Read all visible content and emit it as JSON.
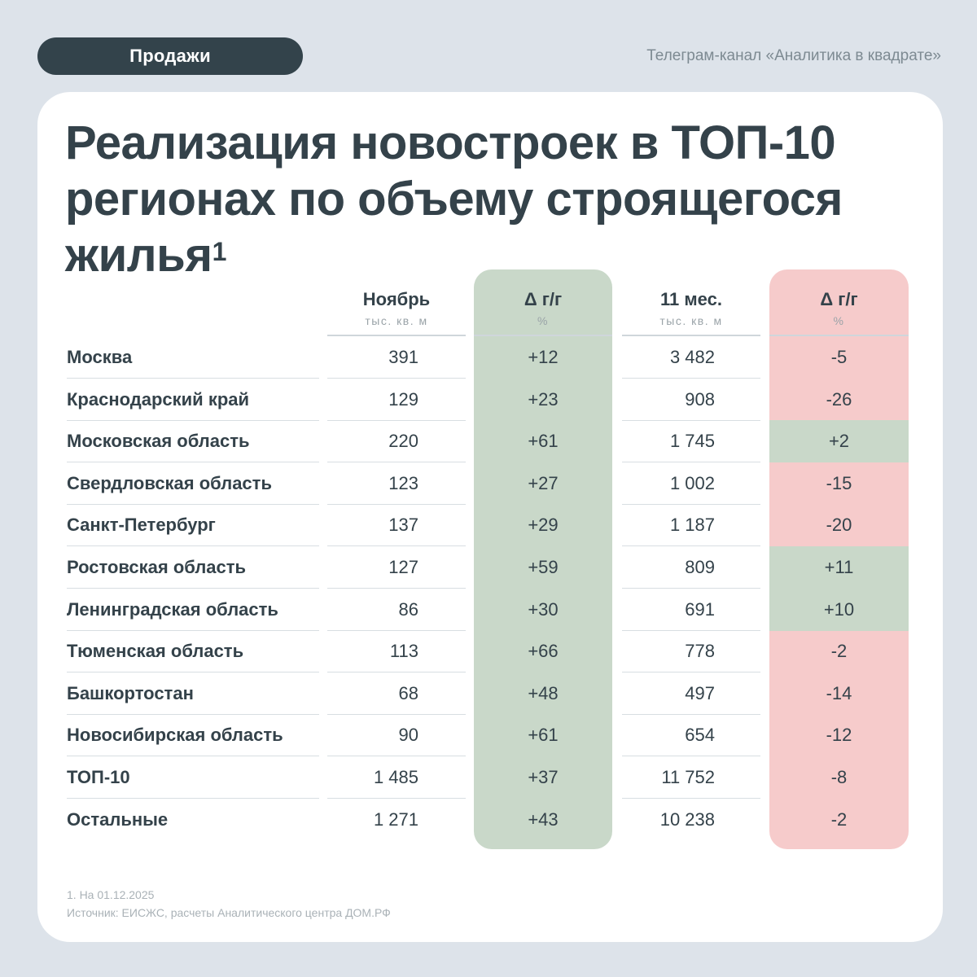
{
  "header": {
    "badge": "Продажи",
    "channel": "Телеграм-канал «Аналитика в квадрате»"
  },
  "title": {
    "text": "Реализация новостроек в ТОП-10 регионах по объему строящегося жилья",
    "footnote_mark": "1"
  },
  "columns": {
    "nov": {
      "label": "Ноябрь",
      "unit": "тыс. кв. м"
    },
    "d1": {
      "label": "Δ г/г",
      "unit": "%"
    },
    "m11": {
      "label": "11 мес.",
      "unit": "тыс. кв. м"
    },
    "d2": {
      "label": "Δ г/г",
      "unit": "%"
    }
  },
  "rows": [
    {
      "name": "Москва",
      "nov": "391",
      "d1": "+12",
      "m11": "3 482",
      "d2": "-5"
    },
    {
      "name": "Краснодарский край",
      "nov": "129",
      "d1": "+23",
      "m11": "908",
      "d2": "-26"
    },
    {
      "name": "Московская область",
      "nov": "220",
      "d1": "+61",
      "m11": "1 745",
      "d2": "+2"
    },
    {
      "name": "Свердловская область",
      "nov": "123",
      "d1": "+27",
      "m11": "1 002",
      "d2": "-15"
    },
    {
      "name": "Санкт-Петербург",
      "nov": "137",
      "d1": "+29",
      "m11": "1 187",
      "d2": "-20"
    },
    {
      "name": "Ростовская область",
      "nov": "127",
      "d1": "+59",
      "m11": "809",
      "d2": "+11"
    },
    {
      "name": "Ленинградская область",
      "nov": "86",
      "d1": "+30",
      "m11": "691",
      "d2": "+10"
    },
    {
      "name": "Тюменская область",
      "nov": "113",
      "d1": "+66",
      "m11": "778",
      "d2": "-2"
    },
    {
      "name": "Башкортостан",
      "nov": "68",
      "d1": "+48",
      "m11": "497",
      "d2": "-14"
    },
    {
      "name": "Новосибирская область",
      "nov": "90",
      "d1": "+61",
      "m11": "654",
      "d2": "-12"
    },
    {
      "name": "ТОП-10",
      "nov": "1 485",
      "d1": "+37",
      "m11": "11 752",
      "d2": "-8"
    },
    {
      "name": "Остальные",
      "nov": "1 271",
      "d1": "+43",
      "m11": "10 238",
      "d2": "-2"
    }
  ],
  "footer": {
    "note": "1. На 01.12.2025",
    "source": "Источник: ЕИСЖС, расчеты Аналитического центра ДОМ.РФ"
  },
  "colors": {
    "positive_band": "#c9d8c9",
    "negative_band": "#f6cbcb",
    "dark": "#33434b"
  }
}
